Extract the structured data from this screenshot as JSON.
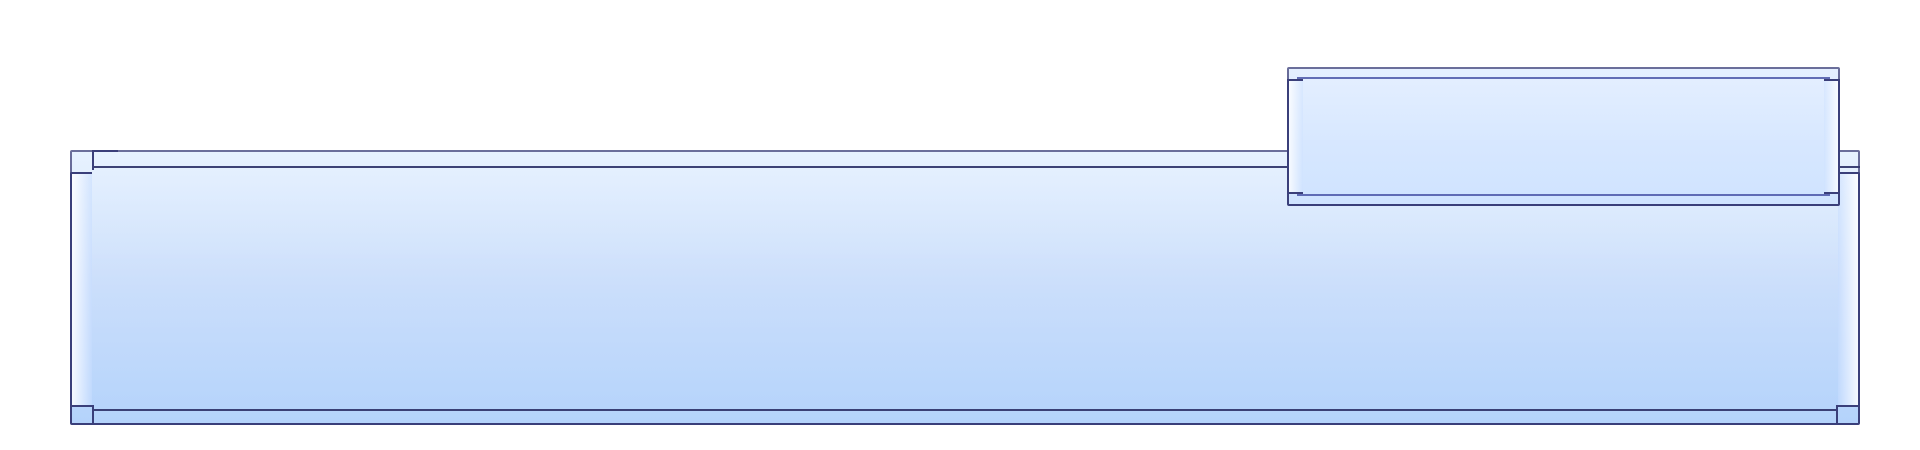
{
  "theme": {
    "panel_stroke": "#3a3f7a",
    "panel_fill_top": "#dfeeff",
    "panel_fill_bottom": "#b4d3fb",
    "background": "#ffffff"
  },
  "ui": {
    "main_panel": {},
    "upper_panel": {}
  }
}
